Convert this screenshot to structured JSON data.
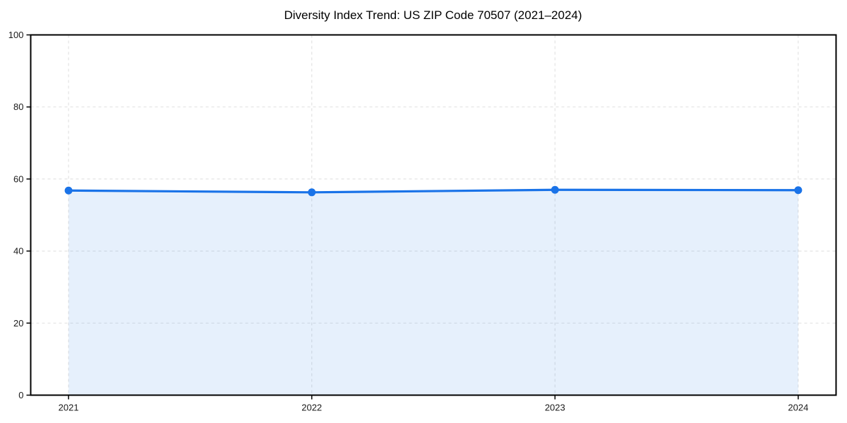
{
  "chart_data": {
    "type": "line",
    "title": "Diversity Index Trend: US ZIP Code 70507 (2021–2024)",
    "categories": [
      "2021",
      "2022",
      "2023",
      "2024"
    ],
    "series": [
      {
        "name": "Diversity Index",
        "values": [
          56.8,
          56.3,
          57.0,
          56.9
        ]
      }
    ],
    "xlabel": "",
    "ylabel": "",
    "ylim": [
      0,
      100
    ],
    "yticks": [
      0,
      20,
      40,
      60,
      80,
      100
    ],
    "grid": "dashed-both-axes",
    "legend": "none",
    "markers": true,
    "area_fill": true,
    "colors": {
      "line": "#1a73e8",
      "marker": "#1a73e8",
      "area_fill": "rgba(26,115,232,0.11)",
      "gridline": "#e3e3e3",
      "axis": "#000000",
      "tick_text": "#1a1a1a",
      "title_text": "#000000"
    }
  }
}
